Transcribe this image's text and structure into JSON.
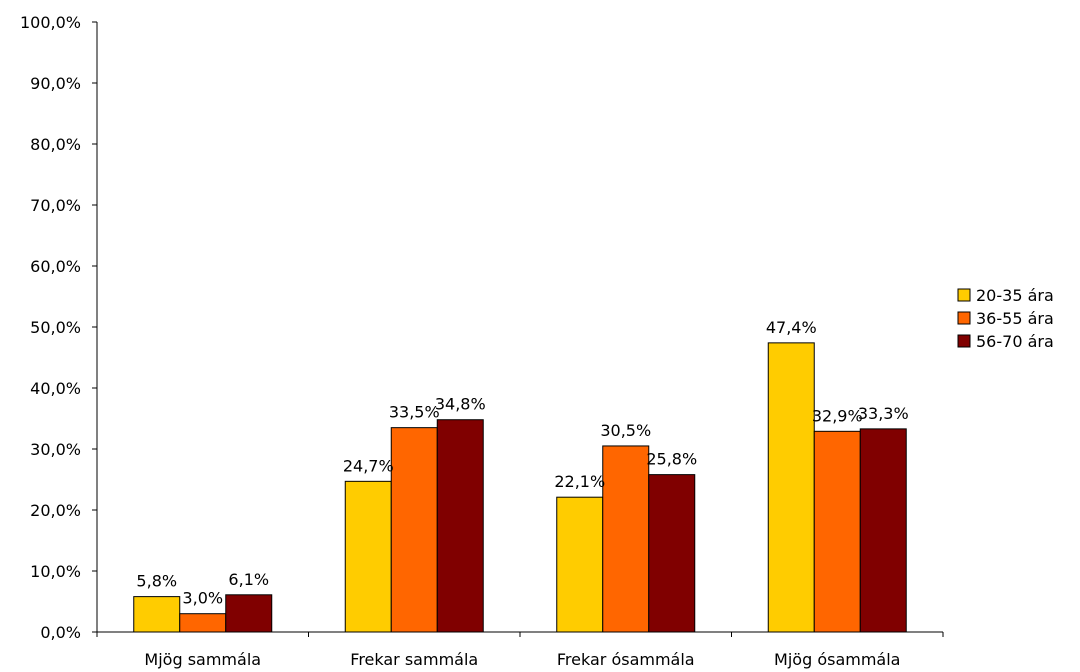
{
  "chart_data": {
    "type": "bar",
    "categories": [
      "Mjög sammála",
      "Frekar sammála",
      "Frekar ósammála",
      "Mjög ósammála"
    ],
    "series": [
      {
        "name": "20-35 ára",
        "color": "#FFCC00",
        "values": [
          5.8,
          24.7,
          22.1,
          47.4
        ],
        "labels": [
          "5,8%",
          "24,7%",
          "22,1%",
          "47,4%"
        ]
      },
      {
        "name": "36-55 ára",
        "color": "#FF6600",
        "values": [
          3.0,
          33.5,
          30.5,
          32.9
        ],
        "labels": [
          "3,0%",
          "33,5%",
          "30,5%",
          "32,9%"
        ]
      },
      {
        "name": "56-70 ára",
        "color": "#800000",
        "values": [
          6.1,
          34.8,
          25.8,
          33.3
        ],
        "labels": [
          "6,1%",
          "34,8%",
          "25,8%",
          "33,3%"
        ]
      }
    ],
    "ylim": [
      0,
      100
    ],
    "yticks": [
      "0,0%",
      "10,0%",
      "20,0%",
      "30,0%",
      "40,0%",
      "50,0%",
      "60,0%",
      "70,0%",
      "80,0%",
      "90,0%",
      "100,0%"
    ],
    "legend_position": "right",
    "grid": false
  }
}
